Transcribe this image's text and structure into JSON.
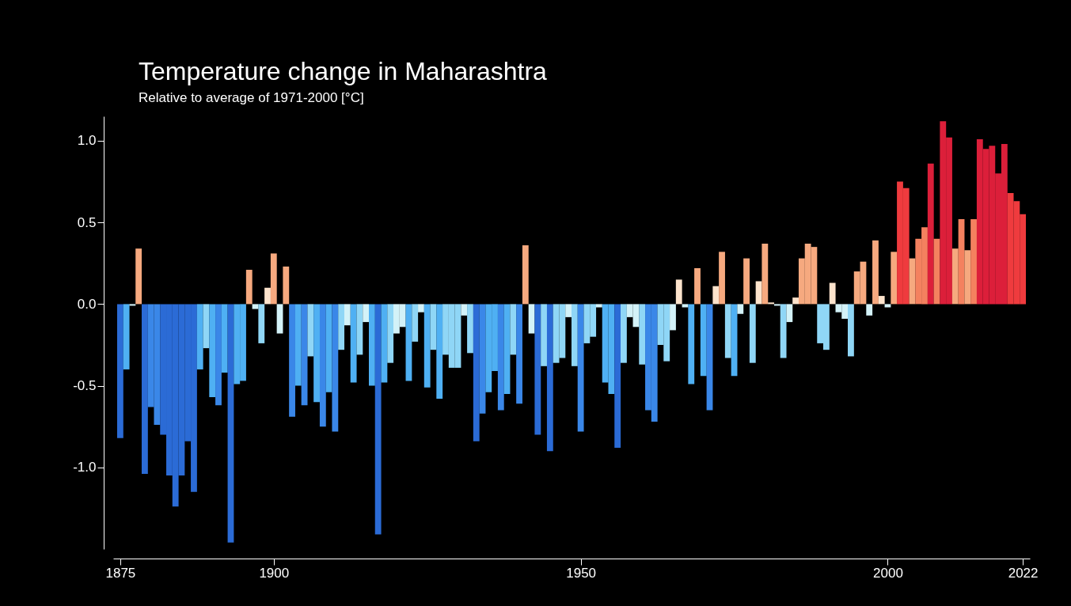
{
  "chart_data": {
    "type": "bar",
    "title": "Temperature change in Maharashtra",
    "subtitle": "Relative to average of 1971-2000  [°C]",
    "x": [
      1875,
      1876,
      1877,
      1878,
      1879,
      1880,
      1881,
      1882,
      1883,
      1884,
      1885,
      1886,
      1887,
      1888,
      1889,
      1890,
      1891,
      1892,
      1893,
      1894,
      1895,
      1896,
      1897,
      1898,
      1899,
      1900,
      1901,
      1902,
      1903,
      1904,
      1905,
      1906,
      1907,
      1908,
      1909,
      1910,
      1911,
      1912,
      1913,
      1914,
      1915,
      1916,
      1917,
      1918,
      1919,
      1920,
      1921,
      1922,
      1923,
      1924,
      1925,
      1926,
      1927,
      1928,
      1929,
      1930,
      1931,
      1932,
      1933,
      1934,
      1935,
      1936,
      1937,
      1938,
      1939,
      1940,
      1941,
      1942,
      1943,
      1944,
      1945,
      1946,
      1947,
      1948,
      1949,
      1950,
      1951,
      1952,
      1953,
      1954,
      1955,
      1956,
      1957,
      1958,
      1959,
      1960,
      1961,
      1962,
      1963,
      1964,
      1965,
      1966,
      1967,
      1968,
      1969,
      1970,
      1971,
      1972,
      1973,
      1974,
      1975,
      1976,
      1977,
      1978,
      1979,
      1980,
      1981,
      1982,
      1983,
      1984,
      1985,
      1986,
      1987,
      1988,
      1989,
      1990,
      1991,
      1992,
      1993,
      1994,
      1995,
      1996,
      1997,
      1998,
      1999,
      2000,
      2001,
      2002,
      2003,
      2004,
      2005,
      2006,
      2007,
      2008,
      2009,
      2010,
      2011,
      2012,
      2013,
      2014,
      2015,
      2016,
      2017,
      2018,
      2019,
      2020,
      2021,
      2022
    ],
    "values": [
      -0.82,
      -0.4,
      -0.01,
      0.34,
      -1.04,
      -0.63,
      -0.74,
      -0.8,
      -1.05,
      -1.24,
      -1.05,
      -0.84,
      -1.15,
      -0.4,
      -0.27,
      -0.57,
      -0.62,
      -0.42,
      -1.46,
      -0.49,
      -0.47,
      0.21,
      -0.03,
      -0.24,
      0.1,
      0.31,
      -0.18,
      0.23,
      -0.69,
      -0.5,
      -0.62,
      -0.32,
      -0.6,
      -0.75,
      -0.54,
      -0.78,
      -0.28,
      -0.13,
      -0.48,
      -0.31,
      -0.11,
      -0.5,
      -1.41,
      -0.48,
      -0.36,
      -0.18,
      -0.14,
      -0.47,
      -0.23,
      -0.05,
      -0.51,
      -0.28,
      -0.58,
      -0.31,
      -0.39,
      -0.39,
      -0.07,
      -0.3,
      -0.84,
      -0.67,
      -0.54,
      -0.41,
      -0.65,
      -0.55,
      -0.31,
      -0.61,
      0.36,
      -0.18,
      -0.8,
      -0.38,
      -0.9,
      -0.36,
      -0.33,
      -0.08,
      -0.38,
      -0.78,
      -0.24,
      -0.2,
      -0.02,
      -0.48,
      -0.55,
      -0.88,
      -0.36,
      -0.08,
      -0.14,
      -0.37,
      -0.65,
      -0.72,
      -0.25,
      -0.35,
      -0.16,
      0.15,
      -0.02,
      -0.49,
      0.22,
      -0.44,
      -0.65,
      0.11,
      0.32,
      -0.33,
      -0.44,
      -0.06,
      0.28,
      -0.36,
      0.14,
      0.37,
      0.01,
      -0.01,
      -0.33,
      -0.11,
      0.04,
      0.28,
      0.37,
      0.35,
      -0.24,
      -0.28,
      0.13,
      -0.05,
      -0.09,
      -0.32,
      0.2,
      0.26,
      -0.07,
      0.39,
      0.05,
      -0.02,
      0.32,
      0.75,
      0.71,
      0.28,
      0.4,
      0.47,
      0.86,
      0.4,
      1.12,
      1.02,
      0.34,
      0.52,
      0.33,
      0.52,
      1.01,
      0.95,
      0.97,
      0.8,
      0.98,
      0.68,
      0.63,
      0.55
    ],
    "colors": [
      "#2b6bd6",
      "#4fb0f3",
      "#d3f2f8",
      "#f6a97f",
      "#2b6bd6",
      "#3a87e8",
      "#3a87e8",
      "#2b6bd6",
      "#2b6bd6",
      "#2b6bd6",
      "#2b6bd6",
      "#2b6bd6",
      "#2b6bd6",
      "#4fb0f3",
      "#8fd6f6",
      "#4fb0f3",
      "#3a87e8",
      "#4fb0f3",
      "#2b6bd6",
      "#4fb0f3",
      "#4fb0f3",
      "#f6a97f",
      "#d3f2f8",
      "#8fd6f6",
      "#fce3cc",
      "#f6a97f",
      "#d3f2f8",
      "#f6a97f",
      "#3a87e8",
      "#4fb0f3",
      "#3a87e8",
      "#8fd6f6",
      "#4fb0f3",
      "#3a87e8",
      "#4fb0f3",
      "#3a87e8",
      "#8fd6f6",
      "#d3f2f8",
      "#4fb0f3",
      "#8fd6f6",
      "#d3f2f8",
      "#4fb0f3",
      "#2b6bd6",
      "#4fb0f3",
      "#8fd6f6",
      "#d3f2f8",
      "#d3f2f8",
      "#4fb0f3",
      "#8fd6f6",
      "#d3f2f8",
      "#4fb0f3",
      "#8fd6f6",
      "#4fb0f3",
      "#8fd6f6",
      "#8fd6f6",
      "#8fd6f6",
      "#d3f2f8",
      "#8fd6f6",
      "#2b6bd6",
      "#3a87e8",
      "#4fb0f3",
      "#4fb0f3",
      "#3a87e8",
      "#4fb0f3",
      "#8fd6f6",
      "#3a87e8",
      "#f6a97f",
      "#d3f2f8",
      "#2b6bd6",
      "#8fd6f6",
      "#2b6bd6",
      "#8fd6f6",
      "#8fd6f6",
      "#d3f2f8",
      "#8fd6f6",
      "#3a87e8",
      "#8fd6f6",
      "#8fd6f6",
      "#d3f2f8",
      "#4fb0f3",
      "#4fb0f3",
      "#2b6bd6",
      "#8fd6f6",
      "#d3f2f8",
      "#d3f2f8",
      "#8fd6f6",
      "#3a87e8",
      "#3a87e8",
      "#8fd6f6",
      "#8fd6f6",
      "#d3f2f8",
      "#fce3cc",
      "#d3f2f8",
      "#4fb0f3",
      "#f6a97f",
      "#4fb0f3",
      "#3a87e8",
      "#fce3cc",
      "#f6a97f",
      "#8fd6f6",
      "#4fb0f3",
      "#d3f2f8",
      "#f6a97f",
      "#8fd6f6",
      "#fce3cc",
      "#f6a97f",
      "#fce3cc",
      "#d3f2f8",
      "#8fd6f6",
      "#d3f2f8",
      "#fce3cc",
      "#f6a97f",
      "#f6a97f",
      "#f6a97f",
      "#8fd6f6",
      "#8fd6f6",
      "#fce3cc",
      "#d3f2f8",
      "#d3f2f8",
      "#8fd6f6",
      "#f6a97f",
      "#f6a97f",
      "#d3f2f8",
      "#f6a97f",
      "#fce3cc",
      "#d3f2f8",
      "#f6a97f",
      "#ef3b3e",
      "#ef3b3e",
      "#f6a97f",
      "#f4815f",
      "#f4815f",
      "#dc1f3a",
      "#f4815f",
      "#dc1f3a",
      "#dc1f3a",
      "#f6a97f",
      "#f4815f",
      "#f6a97f",
      "#f4815f",
      "#dc1f3a",
      "#dc1f3a",
      "#dc1f3a",
      "#dc1f3a",
      "#dc1f3a",
      "#ef3b3e",
      "#ef3b3e",
      "#ef3b3e"
    ],
    "xlim": [
      1874.5,
      2022.5
    ],
    "xticks": [
      1875,
      1900,
      1950,
      2000,
      2022
    ],
    "ylim": [
      -1.5,
      1.15
    ],
    "yticks": [
      {
        "value": -1,
        "label": "-1.0"
      },
      {
        "value": -0.5,
        "label": "-0.5"
      },
      {
        "value": 0,
        "label": "0.0"
      },
      {
        "value": 0.5,
        "label": "0.5"
      },
      {
        "value": 1,
        "label": "1.0"
      }
    ]
  }
}
